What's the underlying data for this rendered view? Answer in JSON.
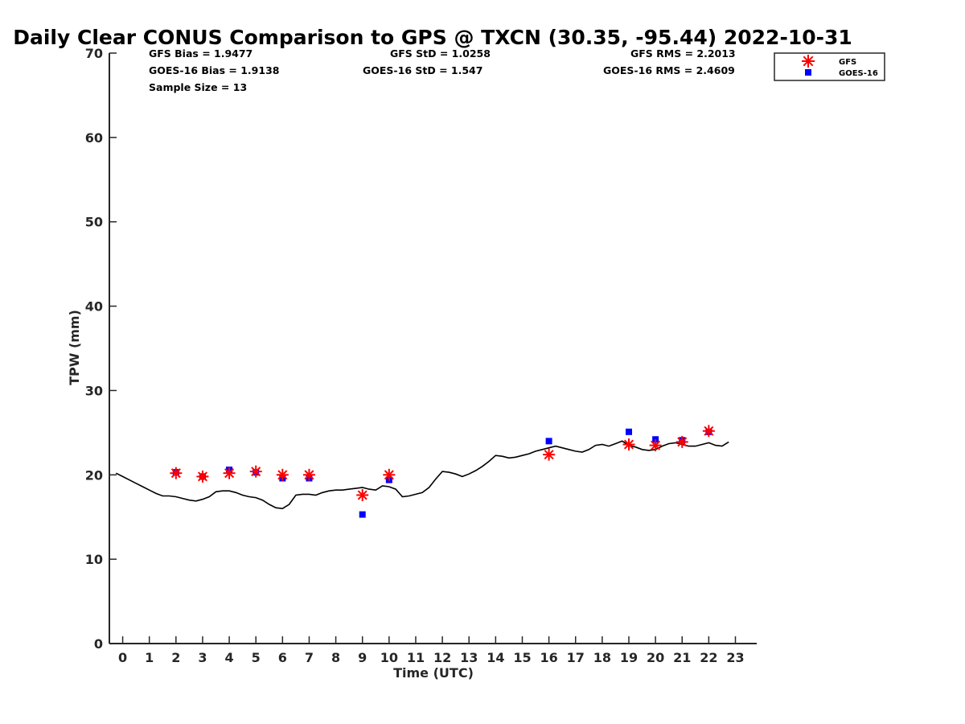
{
  "chart_data": {
    "type": "scatter",
    "title": "Daily Clear CONUS Comparison to GPS @ TXCN (30.35, -95.44) 2022-10-31",
    "xlabel": "Time (UTC)",
    "ylabel": "TPW (mm)",
    "xlim": [
      -0.5,
      23.8
    ],
    "ylim": [
      0,
      70
    ],
    "x_ticks": [
      0,
      1,
      2,
      3,
      4,
      5,
      6,
      7,
      8,
      9,
      10,
      11,
      12,
      13,
      14,
      15,
      16,
      17,
      18,
      19,
      20,
      21,
      22,
      23
    ],
    "y_ticks": [
      0,
      10,
      20,
      30,
      40,
      50,
      60,
      70
    ],
    "grid": false,
    "legend_position": "top-right",
    "stats": [
      {
        "text": "GFS Bias = 1.9477"
      },
      {
        "text": "GFS StD = 1.0258"
      },
      {
        "text": "GFS RMS = 2.2013"
      },
      {
        "text": "GOES-16 Bias = 1.9138"
      },
      {
        "text": "GOES-16 StD = 1.547"
      },
      {
        "text": "GOES-16 RMS = 2.4609"
      },
      {
        "text": "Sample Size = 13"
      }
    ],
    "series": [
      {
        "name": "GFS",
        "kind": "scatter",
        "marker": "asterisk",
        "color": "#ff0000",
        "x": [
          2,
          3,
          4,
          5,
          6,
          7,
          9,
          10,
          16,
          19,
          20,
          21,
          22
        ],
        "y": [
          20.2,
          19.8,
          20.2,
          20.4,
          20.0,
          20.0,
          17.6,
          20.0,
          22.4,
          23.6,
          23.5,
          23.9,
          25.2
        ]
      },
      {
        "name": "GOES-16",
        "kind": "scatter",
        "marker": "square",
        "color": "#0000ff",
        "x": [
          2,
          3,
          4,
          5,
          6,
          7,
          9,
          10,
          16,
          19,
          20,
          21,
          22
        ],
        "y": [
          20.3,
          19.8,
          20.6,
          20.3,
          19.6,
          19.6,
          15.3,
          19.4,
          24.0,
          25.1,
          24.2,
          24.1,
          25.1
        ]
      },
      {
        "kind": "line",
        "color": "#000000",
        "x": [
          -0.25,
          0.0,
          0.25,
          0.5,
          0.75,
          1.0,
          1.25,
          1.5,
          1.75,
          2.0,
          2.25,
          2.5,
          2.75,
          3.0,
          3.25,
          3.5,
          3.75,
          4.0,
          4.25,
          4.5,
          4.75,
          5.0,
          5.25,
          5.5,
          5.75,
          6.0,
          6.25,
          6.5,
          6.75,
          7.0,
          7.25,
          7.5,
          7.75,
          8.0,
          8.25,
          8.5,
          8.75,
          9.0,
          9.25,
          9.5,
          9.75,
          10.0,
          10.25,
          10.5,
          10.75,
          11.0,
          11.25,
          11.5,
          11.75,
          12.0,
          12.25,
          12.5,
          12.75,
          13.0,
          13.25,
          13.5,
          13.75,
          14.0,
          14.25,
          14.5,
          14.75,
          15.0,
          15.25,
          15.5,
          15.75,
          16.0,
          16.25,
          16.5,
          16.75,
          17.0,
          17.25,
          17.5,
          17.75,
          18.0,
          18.25,
          18.5,
          18.75,
          19.0,
          19.25,
          19.5,
          19.75,
          20.0,
          20.25,
          20.5,
          20.75,
          21.0,
          21.25,
          21.5,
          21.75,
          22.0,
          22.25,
          22.5,
          22.75
        ],
        "y": [
          20.2,
          19.8,
          19.4,
          19.0,
          18.6,
          18.2,
          17.8,
          17.5,
          17.5,
          17.4,
          17.2,
          17.0,
          16.9,
          17.1,
          17.4,
          18.0,
          18.1,
          18.1,
          17.9,
          17.6,
          17.4,
          17.3,
          17.0,
          16.5,
          16.1,
          16.0,
          16.5,
          17.6,
          17.7,
          17.7,
          17.6,
          17.9,
          18.1,
          18.2,
          18.2,
          18.3,
          18.4,
          18.5,
          18.3,
          18.2,
          18.7,
          18.6,
          18.3,
          17.4,
          17.5,
          17.7,
          17.9,
          18.5,
          19.5,
          20.4,
          20.3,
          20.1,
          19.8,
          20.1,
          20.5,
          21.0,
          21.6,
          22.3,
          22.2,
          22.0,
          22.1,
          22.3,
          22.5,
          22.8,
          23.0,
          23.2,
          23.4,
          23.2,
          23.0,
          22.8,
          22.7,
          23.0,
          23.5,
          23.6,
          23.4,
          23.7,
          24.0,
          23.5,
          23.3,
          23.0,
          22.9,
          23.0,
          23.4,
          23.7,
          23.8,
          23.6,
          23.4,
          23.4,
          23.6,
          23.8,
          23.5,
          23.4,
          23.9
        ]
      }
    ]
  }
}
